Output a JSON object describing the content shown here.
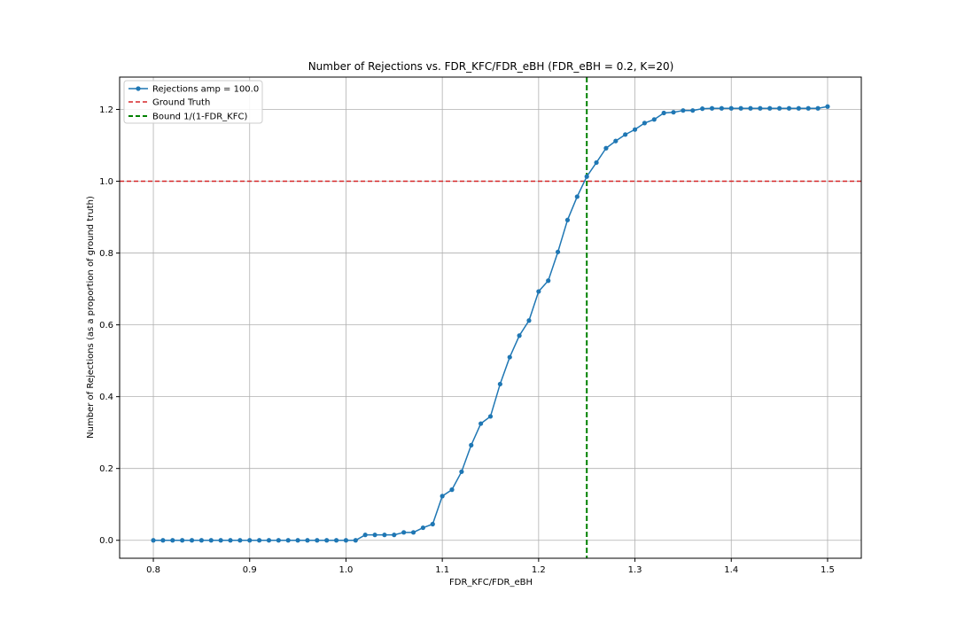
{
  "chart_data": {
    "type": "line",
    "title": "Number of Rejections vs. FDR_KFC/FDR_eBH (FDR_eBH = 0.2, K=20)",
    "xlabel": "FDR_KFC/FDR_eBH",
    "ylabel": "Number of Rejections (as a proportion of ground truth)",
    "xlim": [
      0.765,
      1.535
    ],
    "ylim": [
      -0.05,
      1.29
    ],
    "xticks": [
      0.8,
      0.9,
      1.0,
      1.1,
      1.2,
      1.3,
      1.4,
      1.5
    ],
    "xtick_labels": [
      "0.8",
      "0.9",
      "1.0",
      "1.1",
      "1.2",
      "1.3",
      "1.4",
      "1.5"
    ],
    "yticks": [
      0.0,
      0.2,
      0.4,
      0.6,
      0.8,
      1.0,
      1.2
    ],
    "ytick_labels": [
      "0.0",
      "0.2",
      "0.4",
      "0.6",
      "0.8",
      "1.0",
      "1.2"
    ],
    "grid": true,
    "legend_position": "upper-left",
    "series": [
      {
        "name": "Rejections amp = 100.0",
        "color": "#1f77b4",
        "marker": "circle",
        "x": [
          0.8,
          0.81,
          0.82,
          0.83,
          0.84,
          0.85,
          0.86,
          0.87,
          0.88,
          0.89,
          0.9,
          0.91,
          0.92,
          0.93,
          0.94,
          0.95,
          0.96,
          0.97,
          0.98,
          0.99,
          1.0,
          1.01,
          1.02,
          1.03,
          1.04,
          1.05,
          1.06,
          1.07,
          1.08,
          1.09,
          1.1,
          1.11,
          1.12,
          1.13,
          1.14,
          1.15,
          1.16,
          1.17,
          1.18,
          1.19,
          1.2,
          1.21,
          1.22,
          1.23,
          1.24,
          1.25,
          1.26,
          1.27,
          1.28,
          1.29,
          1.3,
          1.31,
          1.32,
          1.33,
          1.34,
          1.35,
          1.36,
          1.37,
          1.38,
          1.39,
          1.4,
          1.41,
          1.42,
          1.43,
          1.44,
          1.45,
          1.46,
          1.47,
          1.48,
          1.49,
          1.5
        ],
        "y": [
          0,
          0,
          0,
          0,
          0,
          0,
          0,
          0,
          0,
          0,
          0,
          0,
          0,
          0,
          0,
          0,
          0,
          0,
          0,
          0,
          0,
          0,
          0.015,
          0.015,
          0.015,
          0.015,
          0.022,
          0.022,
          0.035,
          0.045,
          0.123,
          0.141,
          0.191,
          0.265,
          0.325,
          0.345,
          0.435,
          0.51,
          0.57,
          0.612,
          0.693,
          0.723,
          0.803,
          0.892,
          0.957,
          1.013,
          1.052,
          1.092,
          1.112,
          1.13,
          1.144,
          1.162,
          1.172,
          1.19,
          1.192,
          1.197,
          1.197,
          1.202,
          1.203,
          1.203,
          1.203,
          1.203,
          1.203,
          1.203,
          1.203,
          1.203,
          1.203,
          1.203,
          1.203,
          1.203,
          1.208
        ]
      }
    ],
    "reference_lines": [
      {
        "name": "Ground Truth",
        "orientation": "horizontal",
        "value": 1.0,
        "color": "#d62728",
        "style": "dashed"
      },
      {
        "name": "Bound 1/(1-FDR_KFC)",
        "orientation": "vertical",
        "value": 1.25,
        "color": "#008000",
        "style": "dashed"
      }
    ]
  }
}
